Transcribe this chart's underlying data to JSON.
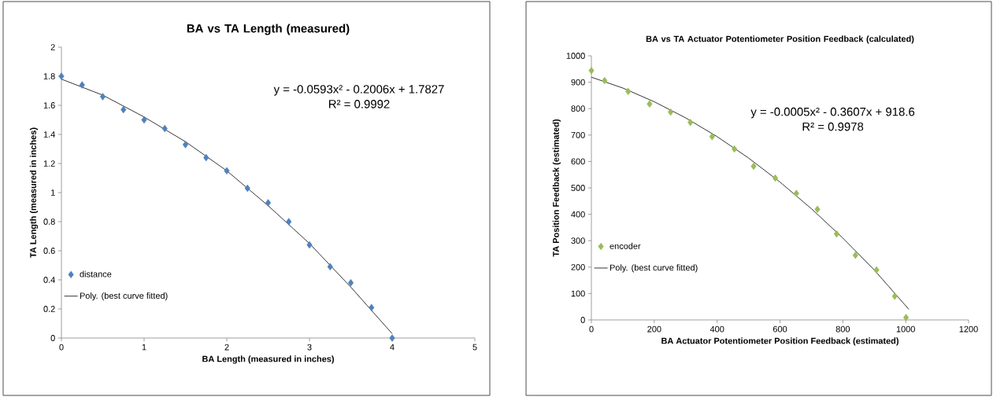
{
  "chart_data": [
    {
      "type": "scatter",
      "title": "BA vs TA Length (measured)",
      "xlabel": "BA Length (measured in inches)",
      "ylabel": "TA Length (measured in inches)",
      "x": [
        0,
        0.25,
        0.5,
        0.75,
        1,
        1.25,
        1.5,
        1.75,
        2,
        2.25,
        2.5,
        2.75,
        3,
        3.25,
        3.5,
        3.75,
        4
      ],
      "series": [
        {
          "name": "distance",
          "color": "#4f81bd",
          "marker": "diamond",
          "values": [
            1.8,
            1.74,
            1.66,
            1.57,
            1.5,
            1.44,
            1.33,
            1.24,
            1.15,
            1.03,
            0.93,
            0.8,
            0.64,
            0.49,
            0.38,
            0.21,
            0
          ]
        },
        {
          "name": "Poly. (best curve fitted)",
          "type": "line",
          "color": "#000000",
          "marker": "none",
          "x": [
            0,
            0.5,
            1,
            1.5,
            2,
            2.5,
            3,
            3.5,
            4
          ],
          "values": [
            1.78,
            1.67,
            1.52,
            1.35,
            1.15,
            0.91,
            0.65,
            0.35,
            0.03
          ]
        }
      ],
      "xlim": [
        0,
        5
      ],
      "ylim": [
        0,
        2
      ],
      "xticks": [
        0,
        1,
        2,
        3,
        4,
        5
      ],
      "yticks": [
        0,
        0.2,
        0.4,
        0.6,
        0.8,
        1,
        1.2,
        1.4,
        1.6,
        1.8,
        2
      ],
      "annotations": [
        "y = -0.0593x² - 0.2006x + 1.7827",
        "R² = 0.9992"
      ],
      "legend": "bottom left",
      "grid": false
    },
    {
      "type": "scatter",
      "title": "BA vs TA Actuator Potentiometer Position Feedback (calculated)",
      "xlabel": "BA Actuator Potentiometer  Position Feedback (estimated)",
      "ylabel": "TA Position Feedback (estimated)",
      "x": [
        0,
        42,
        117,
        185,
        252,
        315,
        384,
        455,
        516,
        585,
        652,
        719,
        780,
        840,
        907,
        965,
        1001
      ],
      "series": [
        {
          "name": "encoder",
          "color": "#9bbb59",
          "marker": "diamond",
          "values": [
            944,
            906,
            865,
            818,
            787,
            748,
            694,
            647,
            582,
            537,
            479,
            419,
            326,
            245,
            189,
            90,
            9
          ]
        },
        {
          "name": "Poly.  (best curve fitted)",
          "type": "line",
          "color": "#000000",
          "marker": "none",
          "x": [
            0,
            100,
            200,
            300,
            400,
            500,
            600,
            700,
            800,
            900,
            1010
          ],
          "values": [
            919,
            878,
            826,
            765,
            694,
            613,
            522,
            421,
            310,
            189,
            40
          ]
        }
      ],
      "xlim": [
        0,
        1200
      ],
      "ylim": [
        0,
        1000
      ],
      "xticks": [
        0,
        200,
        400,
        600,
        800,
        1000,
        1200
      ],
      "yticks": [
        0,
        100,
        200,
        300,
        400,
        500,
        600,
        700,
        800,
        900,
        1000
      ],
      "annotations": [
        "y = -0.0005x² - 0.3607x + 918.6",
        "R² = 0.9978"
      ],
      "legend": "bottom left",
      "grid": false
    }
  ]
}
